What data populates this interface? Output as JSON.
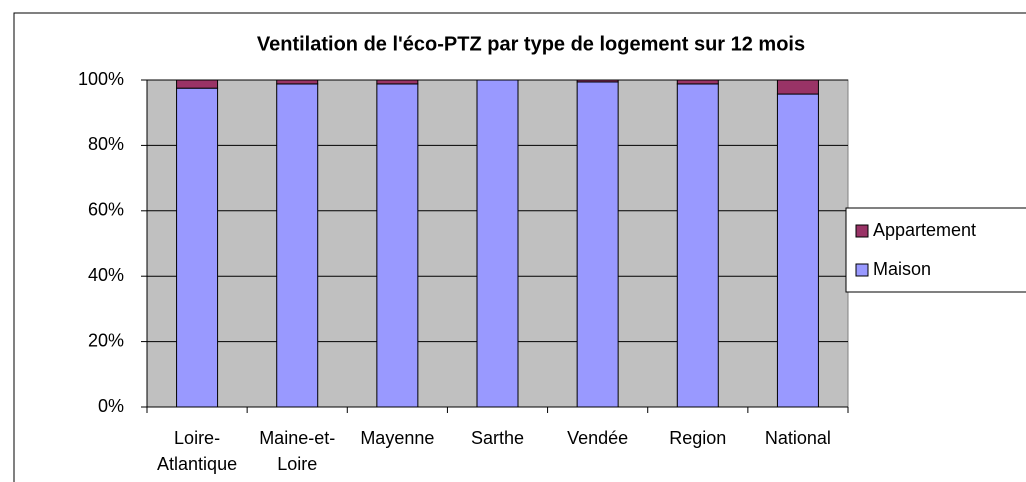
{
  "chart_data": {
    "type": "stacked_bar",
    "title": "Ventilation de l'éco-PTZ par type de logement sur 12 mois",
    "categories": [
      "Loire-Atlantique",
      "Maine-et-Loire",
      "Mayenne",
      "Sarthe",
      "Vendée",
      "Region",
      "National"
    ],
    "series": [
      {
        "name": "Maison",
        "color": "#9999ff",
        "values": [
          97.5,
          98.8,
          98.8,
          100,
          99.4,
          98.8,
          95.7
        ]
      },
      {
        "name": "Appartement",
        "color": "#993366",
        "values": [
          2.5,
          1.2,
          1.2,
          0,
          0.6,
          1.2,
          4.3
        ]
      }
    ],
    "ylim": [
      0,
      100
    ],
    "yticks": [
      {
        "value": 0,
        "label": "0%"
      },
      {
        "value": 20,
        "label": "20%"
      },
      {
        "value": 40,
        "label": "40%"
      },
      {
        "value": 60,
        "label": "60%"
      },
      {
        "value": 80,
        "label": "80%"
      },
      {
        "value": 100,
        "label": "100%"
      }
    ],
    "grid": true,
    "legend": "right"
  }
}
